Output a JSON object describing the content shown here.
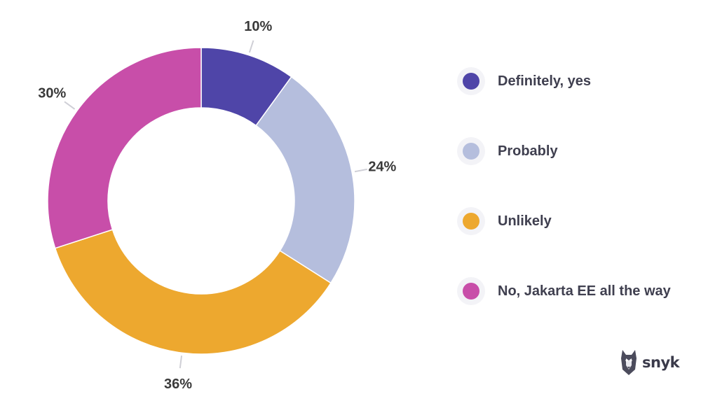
{
  "chart_data": {
    "type": "pie",
    "donut": true,
    "categories": [
      "Definitely, yes",
      "Probably",
      "Unlikely",
      "No, Jakarta EE all the way"
    ],
    "values": [
      10,
      24,
      36,
      30
    ],
    "value_labels": [
      "10%",
      "24%",
      "36%",
      "30%"
    ],
    "colors": [
      "#4f45a8",
      "#b5bedd",
      "#eda82f",
      "#c84ea9"
    ],
    "legend_position": "right"
  },
  "legend": {
    "items": [
      {
        "label": "Definitely, yes",
        "color": "#4f45a8"
      },
      {
        "label": "Probably",
        "color": "#b5bedd"
      },
      {
        "label": "Unlikely",
        "color": "#eda82f"
      },
      {
        "label": "No, Jakarta EE all the way",
        "color": "#c84ea9"
      }
    ]
  },
  "brand": {
    "name": "snyk",
    "icon": "snyk-dog-logo-icon"
  }
}
